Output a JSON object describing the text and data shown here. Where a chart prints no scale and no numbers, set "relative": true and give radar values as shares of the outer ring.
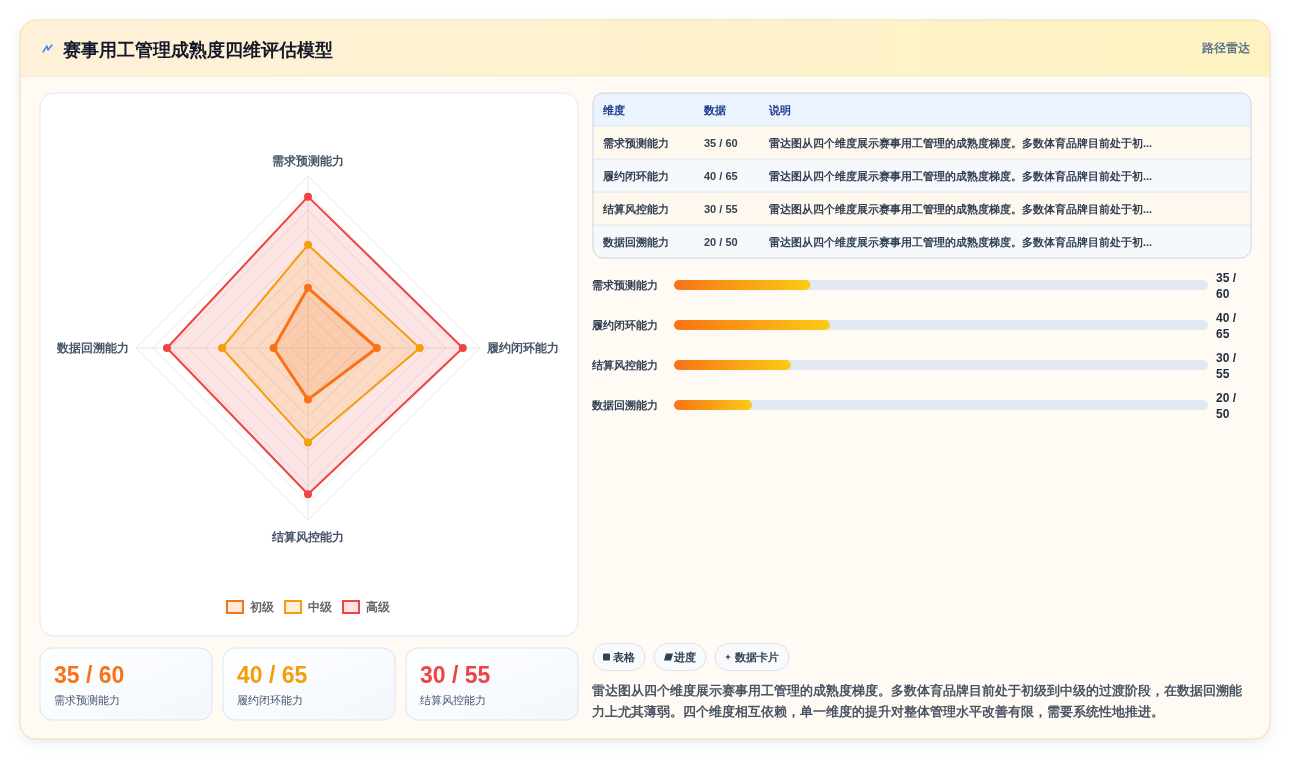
{
  "chart_data": [
    {
      "type": "other",
      "title": "赛事用工管理成熟度四维评估模型",
      "subtitle": "路径雷达"
    },
    {
      "type": "radar",
      "categories": [
        "需求预测能力",
        "履约闭环能力",
        "结算风控能力",
        "数据回溯能力"
      ],
      "series": [
        {
          "name": "初级",
          "color": "#f97316",
          "values": [
            0.35,
            0.4,
            0.3,
            0.2
          ]
        },
        {
          "name": "中级",
          "color": "#f59e0b",
          "values": [
            0.6,
            0.65,
            0.55,
            0.5
          ]
        },
        {
          "name": "高级",
          "color": "#ef4444",
          "values": [
            0.88,
            0.9,
            0.85,
            0.82
          ]
        }
      ],
      "relative": true,
      "grid": true,
      "legend": "bottom",
      "marker": "circle"
    },
    {
      "type": "other",
      "annotations": [
        "维度",
        "数据",
        "说明",
        "需求预测能力",
        "35 / 60",
        "雷达图从四个维度展示赛事用工管理的成熟度梯度。多数体育品牌目前处于初...",
        "履约闭环能力",
        "40 / 65",
        "雷达图从四个维度展示赛事用工管理的成熟度梯度。多数体育品牌目前处于初...",
        "结算风控能力",
        "30 / 55",
        "雷达图从四个维度展示赛事用工管理的成熟度梯度。多数体育品牌目前处于初...",
        "数据回溯能力",
        "20 / 50",
        "雷达图从四个维度展示赛事用工管理的成熟度梯度。多数体育品牌目前处于初..."
      ]
    },
    {
      "type": "bar",
      "orientation": "horizontal",
      "categories": [
        "需求预测能力",
        "履约闭环能力",
        "结算风控能力",
        "数据回溯能力"
      ],
      "values": [
        35,
        40,
        30,
        20
      ],
      "value_labels": [
        "35 / 60",
        "40 / 65",
        "30 / 55",
        "20 / 50"
      ],
      "color": "#f97316"
    },
    {
      "type": "other",
      "categories": [
        "需求预测能力",
        "履约闭环能力",
        "结算风控能力"
      ],
      "value_labels": [
        "35 / 60",
        "40 / 65",
        "30 / 55"
      ]
    },
    {
      "type": "other",
      "categories": [
        "表格",
        "进度",
        "数据卡片"
      ],
      "annotations": [
        "雷达图从四个维度展示赛事用工管理的成熟度梯度。多数体育品牌目前处于初级到中级的过渡阶段，在数据回溯能力上尤其薄弱。四个维度相互依赖，单一维度的提升对整体管理水平改善有限，需要系统性地推进。"
      ]
    }
  ]
}
